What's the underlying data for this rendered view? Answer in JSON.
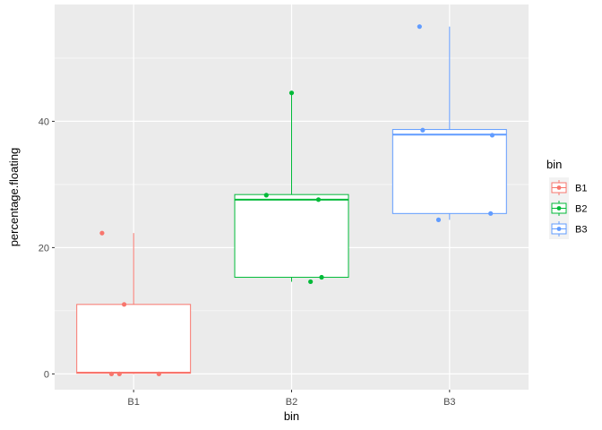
{
  "chart_data": {
    "type": "box",
    "xlabel": "bin",
    "ylabel": "percentage.floating",
    "categories": [
      "B1",
      "B2",
      "B3"
    ],
    "ylim": [
      -2.5,
      58.5
    ],
    "y_ticks": [
      0,
      20,
      40
    ],
    "y_minor_ticks": [
      10,
      30,
      50
    ],
    "grid": true,
    "legend": {
      "title": "bin",
      "position": "right",
      "entries": [
        "B1",
        "B2",
        "B3"
      ]
    },
    "colors": {
      "B1": "#F8766D",
      "B2": "#00BA38",
      "B3": "#619CFF"
    },
    "series": [
      {
        "category": "B1",
        "box": {
          "lower_whisker": 0,
          "q1": 0.1,
          "median": 0.2,
          "q3": 11,
          "upper_whisker": 22.3
        },
        "points": [
          {
            "x_jitter": -0.2,
            "y": 22.3
          },
          {
            "x_jitter": -0.06,
            "y": 11.0
          },
          {
            "x_jitter": -0.14,
            "y": 0
          },
          {
            "x_jitter": -0.09,
            "y": 0
          },
          {
            "x_jitter": 0.16,
            "y": 0
          }
        ]
      },
      {
        "category": "B2",
        "box": {
          "lower_whisker": 14.6,
          "q1": 15.3,
          "median": 27.6,
          "q3": 28.4,
          "upper_whisker": 44.5
        },
        "points": [
          {
            "x_jitter": 0.0,
            "y": 44.5
          },
          {
            "x_jitter": -0.16,
            "y": 28.3
          },
          {
            "x_jitter": 0.17,
            "y": 27.6
          },
          {
            "x_jitter": 0.19,
            "y": 15.3
          },
          {
            "x_jitter": 0.12,
            "y": 14.6
          }
        ]
      },
      {
        "category": "B3",
        "box": {
          "lower_whisker": 24.4,
          "q1": 25.4,
          "median": 37.9,
          "q3": 38.7,
          "upper_whisker": 55.0
        },
        "points": [
          {
            "x_jitter": -0.19,
            "y": 55.0
          },
          {
            "x_jitter": -0.17,
            "y": 38.6
          },
          {
            "x_jitter": 0.27,
            "y": 37.8
          },
          {
            "x_jitter": 0.26,
            "y": 25.4
          },
          {
            "x_jitter": -0.07,
            "y": 24.4
          }
        ]
      }
    ]
  }
}
